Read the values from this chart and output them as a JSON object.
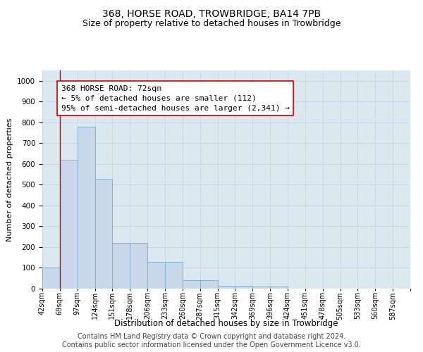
{
  "title": "368, HORSE ROAD, TROWBRIDGE, BA14 7PB",
  "subtitle": "Size of property relative to detached houses in Trowbridge",
  "xlabel": "Distribution of detached houses by size in Trowbridge",
  "ylabel": "Number of detached properties",
  "footer_line1": "Contains HM Land Registry data © Crown copyright and database right 2024.",
  "footer_line2": "Contains public sector information licensed under the Open Government Licence v3.0.",
  "bin_labels": [
    "42sqm",
    "69sqm",
    "97sqm",
    "124sqm",
    "151sqm",
    "178sqm",
    "206sqm",
    "233sqm",
    "260sqm",
    "287sqm",
    "315sqm",
    "342sqm",
    "369sqm",
    "396sqm",
    "424sqm",
    "451sqm",
    "478sqm",
    "505sqm",
    "533sqm",
    "560sqm",
    "587sqm"
  ],
  "bar_values": [
    100,
    620,
    780,
    530,
    220,
    220,
    130,
    130,
    40,
    40,
    15,
    15,
    10,
    10,
    0,
    0,
    0,
    0,
    0,
    0,
    0
  ],
  "bar_color": "#c8d8ea",
  "bar_edge_color": "#7aabcc",
  "annotation_text": "368 HORSE ROAD: 72sqm\n← 5% of detached houses are smaller (112)\n95% of semi-detached houses are larger (2,341) →",
  "annotation_box_color": "#ffffff",
  "annotation_box_edge_color": "#cc0000",
  "vline_color": "#cc0000",
  "ylim": [
    0,
    1050
  ],
  "yticks": [
    0,
    100,
    200,
    300,
    400,
    500,
    600,
    700,
    800,
    900,
    1000
  ],
  "grid_color": "#c8d8ea",
  "background_color": "#dce8f0",
  "title_fontsize": 10,
  "subtitle_fontsize": 9,
  "annotation_fontsize": 8,
  "xlabel_fontsize": 8.5,
  "ylabel_fontsize": 8,
  "tick_fontsize": 7,
  "footer_fontsize": 7
}
